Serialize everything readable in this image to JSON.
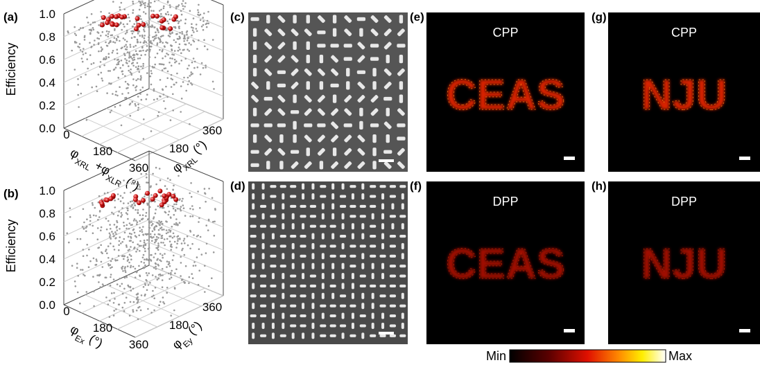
{
  "panels": [
    {
      "label": "(a)",
      "z_label": "Efficiency",
      "z_ticks": [
        "1.0",
        "0.8",
        "0.6",
        "0.4",
        "0.2",
        "0.0"
      ],
      "x_ticks": [
        "0",
        "180",
        "360"
      ],
      "y_ticks": [
        "0",
        "180",
        "360"
      ],
      "x_label": [
        {
          "text": "φ"
        },
        {
          "sub": "XRL"
        },
        {
          "text": " +φ"
        },
        {
          "sub": "XLR"
        },
        {
          "text": " (°)"
        }
      ],
      "y_label": [
        {
          "text": "φ"
        },
        {
          "sub": "XRL"
        },
        {
          "text": " (°)"
        }
      ]
    },
    {
      "label": "(b)",
      "z_label": "Efficiency",
      "z_ticks": [
        "1.0",
        "0.8",
        "0.6",
        "0.4",
        "0.2",
        "0.0"
      ],
      "x_ticks": [
        "0",
        "180",
        "360"
      ],
      "y_ticks": [
        "0",
        "180",
        "360"
      ],
      "x_label": [
        {
          "text": "φ"
        },
        {
          "sub": "Ex"
        },
        {
          "text": " (°)"
        }
      ],
      "y_label": [
        {
          "text": "φ"
        },
        {
          "sub": "Ey"
        },
        {
          "text": " (°)"
        }
      ]
    },
    {
      "label": "(c)"
    },
    {
      "label": "(d)"
    },
    {
      "label": "(e)",
      "title": "CPP",
      "image_text": "CEAS"
    },
    {
      "label": "(f)",
      "title": "DPP",
      "image_text": "CEAS"
    },
    {
      "label": "(g)",
      "title": "CPP",
      "image_text": "NJU"
    },
    {
      "label": "(h)",
      "title": "DPP",
      "image_text": "NJU"
    }
  ],
  "colorbar": {
    "min_label": "Min",
    "max_label": "Max"
  }
}
